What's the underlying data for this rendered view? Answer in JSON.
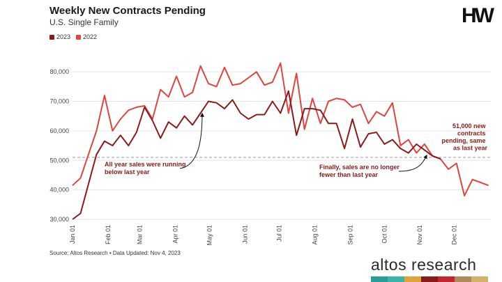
{
  "header": {
    "title": "Weekly New Contracts Pending",
    "subtitle": "U.S. Single Family",
    "brand": "HW"
  },
  "legend": [
    {
      "label": "2023",
      "color": "#8b1a1a"
    },
    {
      "label": "2022",
      "color": "#e0443c"
    }
  ],
  "footer": {
    "source": "Source: Altos Research • Data Updated: Nov 4, 2023",
    "logo_light": "altos",
    "logo_regular": " research",
    "logo_colors": [
      "#2a9d9a",
      "#3bb3a8",
      "#e0a23a",
      "#8b1a1a",
      "#c2272d",
      "#b08a5a",
      "#d4b06a"
    ]
  },
  "chart_data": {
    "type": "line",
    "title": "Weekly New Contracts Pending",
    "subtitle": "U.S. Single Family",
    "x_ticks": [
      "Jan 01",
      "Feb 01",
      "Mar 01",
      "Apr 01",
      "May 01",
      "Jun 01",
      "Jul 01",
      "Aug 01",
      "Sep 01",
      "Oct 01",
      "Nov 01",
      "Dec 01"
    ],
    "y_ticks": [
      30000,
      40000,
      50000,
      60000,
      70000,
      80000
    ],
    "y_tick_labels": [
      "30,000",
      "40,000",
      "50,000",
      "60,000",
      "70,000",
      "80,000"
    ],
    "ylim": [
      30000,
      85000
    ],
    "xlim": [
      0,
      52.3
    ],
    "reference_line": 51000,
    "series": [
      {
        "name": "2022",
        "color": "#e0443c",
        "x": [
          0,
          1,
          2,
          3,
          4,
          5,
          6,
          7,
          8,
          9,
          10,
          11,
          12,
          13,
          14,
          15,
          16,
          17,
          18,
          19,
          20,
          21,
          22,
          23,
          24,
          25,
          26,
          27,
          28,
          29,
          30,
          31,
          32,
          33,
          34,
          35,
          36,
          37,
          38,
          39,
          40,
          41,
          42,
          43,
          44,
          45,
          46,
          47,
          48,
          49,
          50,
          51,
          52
        ],
        "values": [
          41500,
          44000,
          52000,
          60000,
          72000,
          60000,
          64000,
          67000,
          68000,
          68500,
          64000,
          74000,
          71500,
          78500,
          71500,
          73000,
          82000,
          76000,
          75000,
          81500,
          75500,
          76000,
          78000,
          80000,
          75500,
          76500,
          83000,
          66000,
          79500,
          60500,
          71000,
          62500,
          70000,
          71000,
          70500,
          68000,
          69000,
          62500,
          66500,
          65000,
          69500,
          55000,
          57000,
          52500,
          55500,
          51500,
          50500,
          47000,
          49000,
          38000,
          43500,
          42500,
          41500
        ]
      },
      {
        "name": "2023",
        "color": "#8b1a1a",
        "x": [
          0,
          1,
          2,
          3,
          4,
          5,
          6,
          7,
          8,
          9,
          10,
          11,
          12,
          13,
          14,
          15,
          16,
          17,
          18,
          19,
          20,
          21,
          22,
          23,
          24,
          25,
          26,
          27,
          28,
          29,
          30,
          31,
          32,
          33,
          34,
          35,
          36,
          37,
          38,
          39,
          40,
          41,
          42,
          43,
          44,
          45,
          46
        ],
        "values": [
          30000,
          32000,
          42000,
          52000,
          56500,
          55000,
          58500,
          55000,
          59500,
          68000,
          63500,
          57500,
          63000,
          61000,
          65000,
          62000,
          66000,
          70000,
          69500,
          67500,
          70500,
          66000,
          64000,
          65500,
          65500,
          70000,
          66000,
          73500,
          58500,
          67500,
          67500,
          67000,
          62500,
          62500,
          54000,
          64000,
          54500,
          59000,
          59500,
          55500,
          57000,
          54000,
          52500,
          55500,
          53500,
          51500,
          50500
        ]
      }
    ],
    "annotations": [
      {
        "lines": [
          "All year sales were running",
          "below last year"
        ]
      },
      {
        "lines": [
          "Finally, sales are no longer",
          "fewer than last year"
        ]
      },
      {
        "lines": [
          "51,000 new",
          "contracts",
          "pending, same",
          "as last year"
        ]
      }
    ]
  }
}
